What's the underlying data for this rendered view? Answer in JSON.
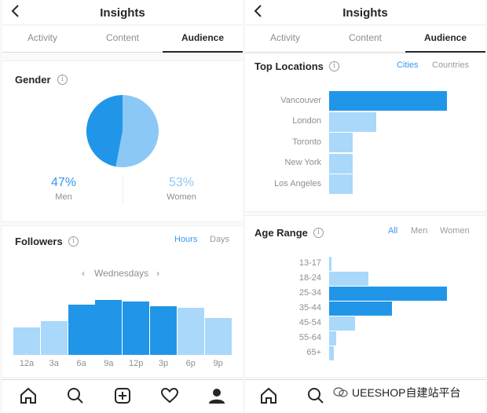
{
  "colors": {
    "accent": "#3897f0",
    "dark_bar": "#2196e8",
    "light_bar": "#a9d8fa",
    "mid_bar": "#7fc3f5"
  },
  "left": {
    "title": "Insights",
    "tabs": [
      "Activity",
      "Content",
      "Audience"
    ],
    "active_tab": "Audience",
    "gender": {
      "title": "Gender",
      "men_pct": "47%",
      "men_label": "Men",
      "women_pct": "53%",
      "women_label": "Women",
      "men_share": 0.47
    },
    "followers": {
      "title": "Followers",
      "toggle_hours": "Hours",
      "toggle_days": "Days",
      "day": "Wednesdays",
      "chart_data": {
        "type": "bar",
        "categories": [
          "12a",
          "3a",
          "6a",
          "9a",
          "12p",
          "3p",
          "6p",
          "9p"
        ],
        "values": [
          35,
          43,
          64,
          70,
          68,
          62,
          60,
          47
        ],
        "highlight": [
          false,
          false,
          true,
          true,
          true,
          true,
          false,
          false
        ],
        "ylim": [
          0,
          80
        ]
      }
    }
  },
  "right": {
    "title": "Insights",
    "tabs": [
      "Activity",
      "Content",
      "Audience"
    ],
    "active_tab": "Audience",
    "locations": {
      "title": "Top Locations",
      "toggle_cities": "Cities",
      "toggle_countries": "Countries",
      "chart_data": {
        "type": "bar",
        "categories": [
          "Vancouver",
          "London",
          "Toronto",
          "New York",
          "Los Angeles"
        ],
        "values": [
          100,
          40,
          20,
          20,
          20
        ],
        "highlight": [
          true,
          false,
          false,
          false,
          false
        ],
        "xlim": [
          0,
          100
        ]
      }
    },
    "age": {
      "title": "Age Range",
      "toggle_all": "All",
      "toggle_men": "Men",
      "toggle_women": "Women",
      "chart_data": {
        "type": "bar",
        "categories": [
          "13-17",
          "18-24",
          "25-34",
          "35-44",
          "45-54",
          "55-64",
          "65+"
        ],
        "values": [
          2,
          33,
          100,
          53,
          22,
          6,
          4
        ],
        "highlight": [
          false,
          false,
          true,
          true,
          false,
          false,
          false
        ],
        "xlim": [
          0,
          100
        ]
      }
    }
  },
  "nav_icons": [
    "home-icon",
    "search-icon",
    "add-post-icon",
    "heart-icon",
    "profile-icon"
  ],
  "watermark": "UEESHOP自建站平台"
}
